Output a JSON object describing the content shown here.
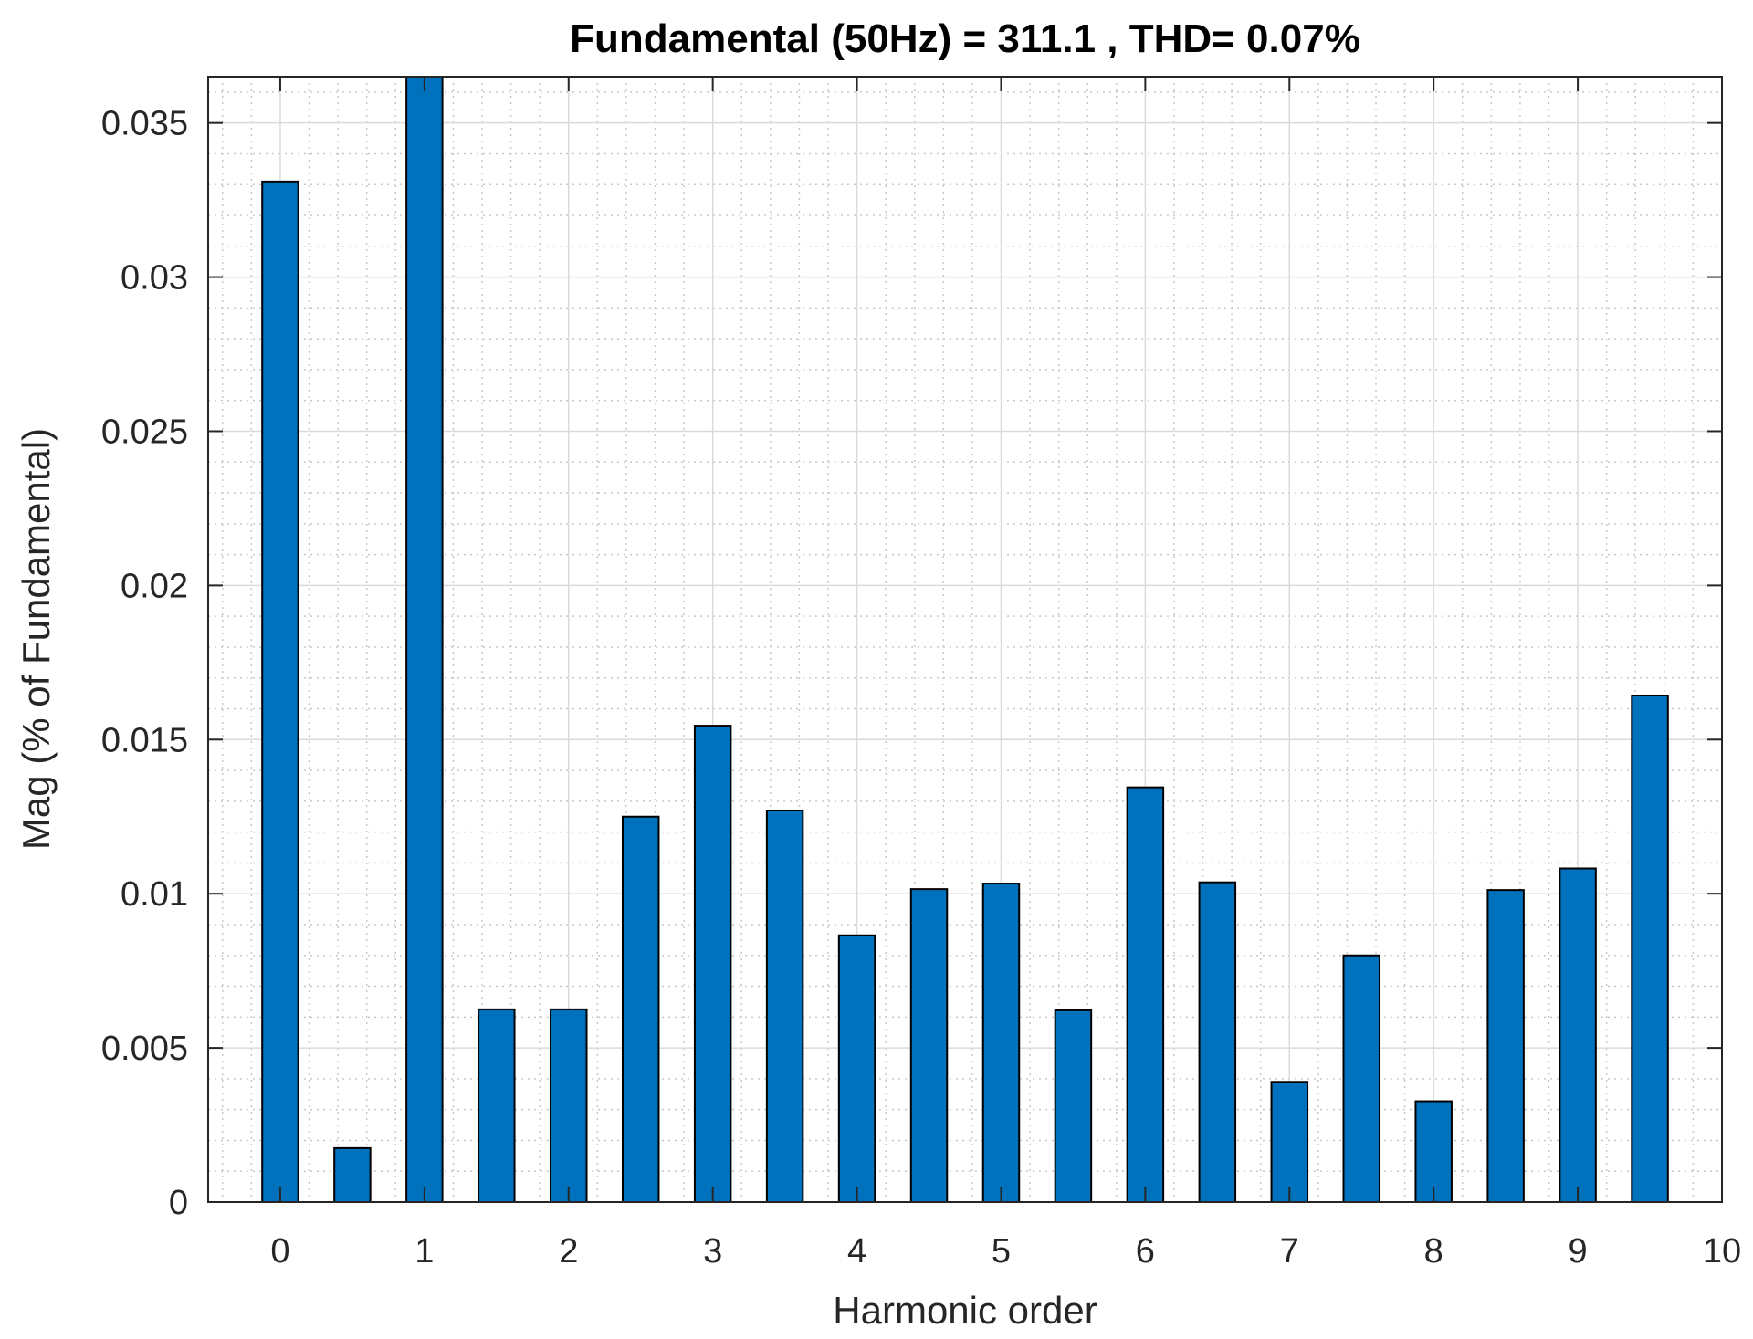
{
  "chart_data": {
    "type": "bar",
    "title": "Fundamental (50Hz) = 311.1 , THD= 0.07%",
    "xlabel": "Harmonic order",
    "ylabel": "Mag (% of Fundamental)",
    "x": [
      0,
      0.5,
      1,
      1.5,
      2,
      2.5,
      3,
      3.5,
      4,
      4.5,
      5,
      5.5,
      6,
      6.5,
      7,
      7.5,
      8,
      8.5,
      9,
      9.5
    ],
    "values": [
      0.0331,
      0.00175,
      0.0365,
      0.00625,
      0.00625,
      0.0125,
      0.01545,
      0.0127,
      0.00865,
      0.01015,
      0.01033,
      0.00622,
      0.01345,
      0.01037,
      0.0039,
      0.008,
      0.00327,
      0.01012,
      0.01082,
      0.01643
    ],
    "xlim": [
      -0.5,
      10
    ],
    "ylim": [
      0,
      0.0365
    ],
    "xticks": [
      0,
      1,
      2,
      3,
      4,
      5,
      6,
      7,
      8,
      9,
      10
    ],
    "xtick_labels": [
      "0",
      "1",
      "2",
      "3",
      "4",
      "5",
      "6",
      "7",
      "8",
      "9",
      "10"
    ],
    "yticks": [
      0,
      0.005,
      0.01,
      0.015,
      0.02,
      0.025,
      0.03,
      0.035
    ],
    "ytick_labels": [
      "0",
      "0.005",
      "0.01",
      "0.015",
      "0.02",
      "0.025",
      "0.03",
      "0.035"
    ],
    "grid": true,
    "minor_grid": true,
    "bar_color": "#0072BD",
    "bar_edge_color": "#000000"
  }
}
